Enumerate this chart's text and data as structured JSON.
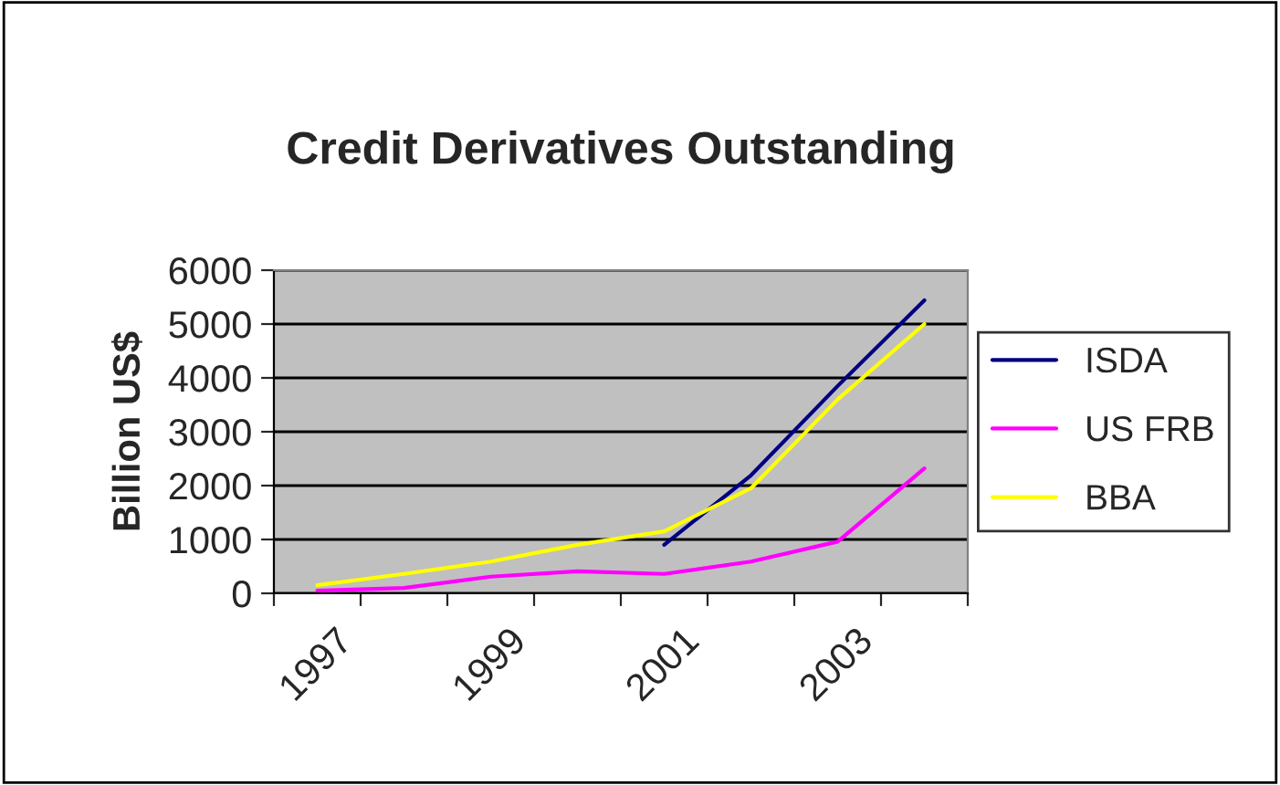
{
  "chart_data": {
    "type": "line",
    "title": "Credit Derivatives Outstanding",
    "ylabel": "Billion US$",
    "categories": [
      "1997",
      null,
      "1999",
      null,
      "2001",
      null,
      "2003",
      null
    ],
    "series": [
      {
        "name": "ISDA",
        "color": "#000080",
        "values": [
          null,
          null,
          null,
          null,
          900,
          2190,
          3850,
          5440
        ]
      },
      {
        "name": "US FRB",
        "color": "#ff00ff",
        "values": [
          50,
          100,
          310,
          410,
          360,
          590,
          960,
          2320
        ]
      },
      {
        "name": "BBA",
        "color": "#ffff00",
        "values": [
          150,
          360,
          590,
          900,
          1150,
          1950,
          3600,
          5000
        ]
      }
    ],
    "ylim": [
      0,
      6000
    ],
    "yticks": [
      0,
      1000,
      2000,
      3000,
      4000,
      5000,
      6000
    ],
    "grid": "y",
    "legend": "right",
    "marker": "none",
    "line_style": "solid"
  }
}
